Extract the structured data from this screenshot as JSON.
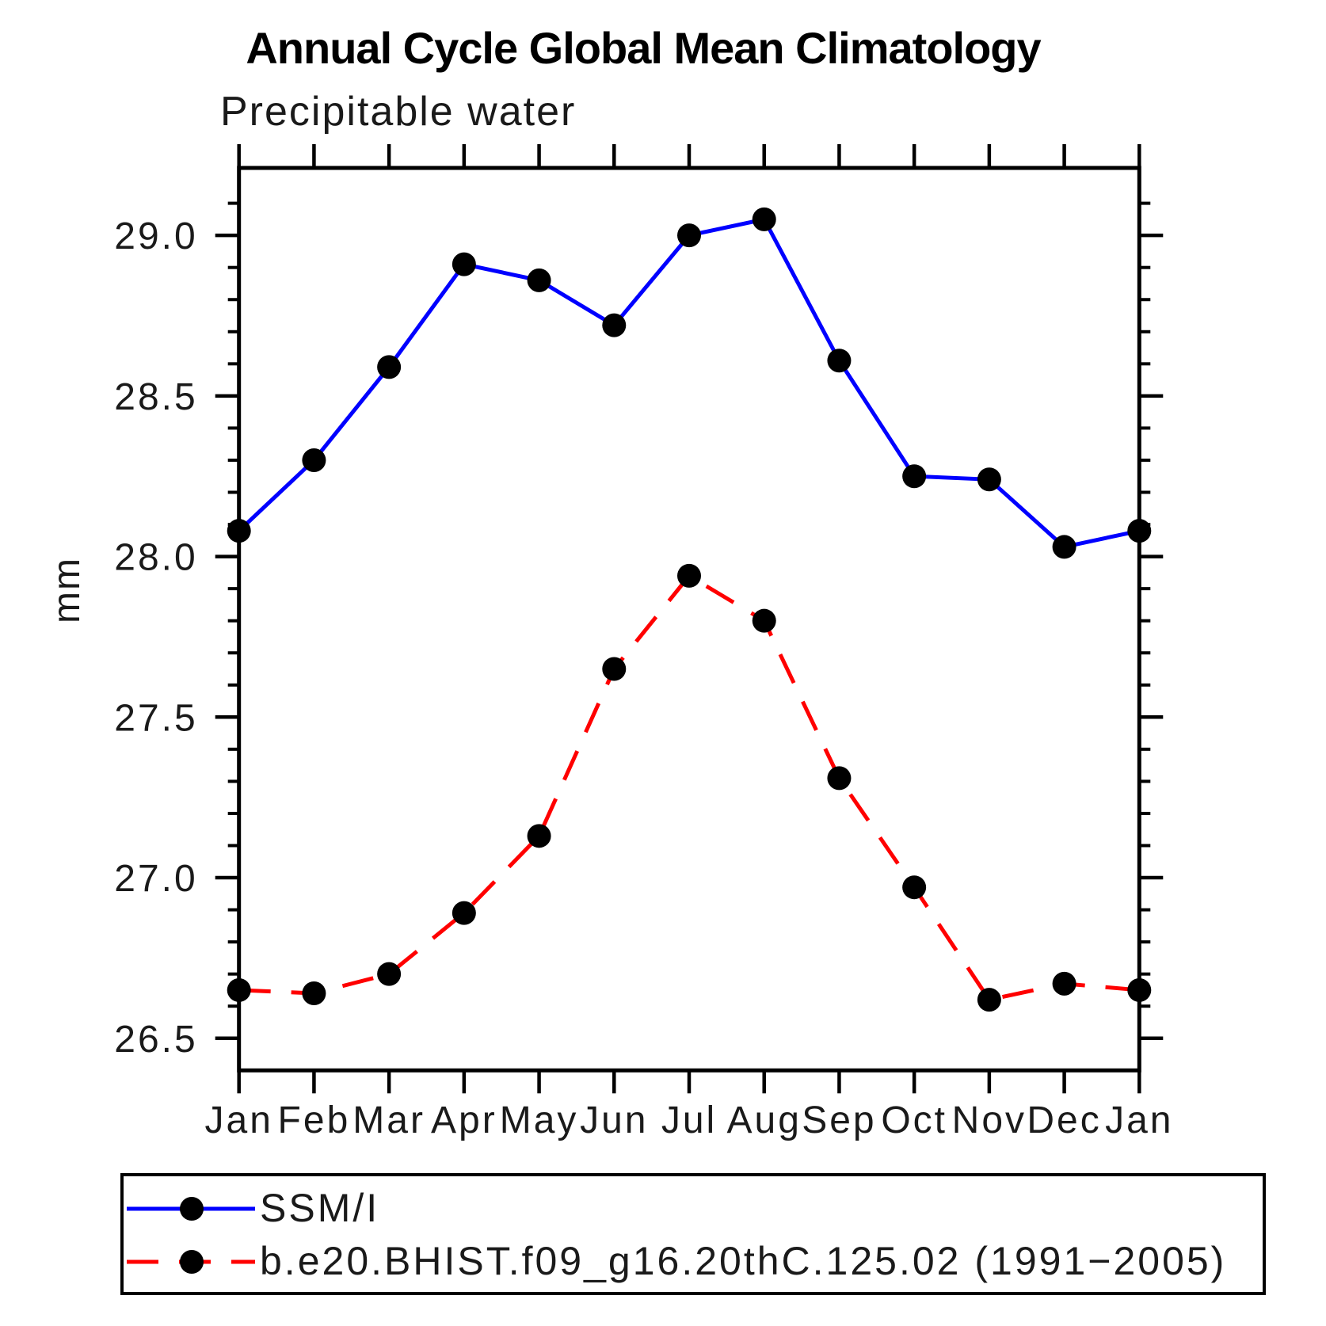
{
  "title": "Annual Cycle Global Mean Climatology",
  "subtitle": "Precipitable water",
  "y_axis_label": "mm",
  "chart_data": {
    "type": "line",
    "title": "Annual Cycle Global Mean Climatology",
    "subtitle": "Precipitable water",
    "xlabel": "",
    "ylabel": "mm",
    "categories": [
      "Jan",
      "Feb",
      "Mar",
      "Apr",
      "May",
      "Jun",
      "Jul",
      "Aug",
      "Sep",
      "Oct",
      "Nov",
      "Dec",
      "Jan"
    ],
    "ylim": [
      26.4,
      29.21
    ],
    "y_ticks_major": [
      26.5,
      27.0,
      27.5,
      28.0,
      28.5,
      29.0
    ],
    "y_tick_labels": [
      "26.5",
      "27.0",
      "27.5",
      "28.0",
      "28.5",
      "29.0"
    ],
    "y_minor_tick_step": 0.1,
    "grid": false,
    "legend_position": "bottom",
    "frame_color": "#000000",
    "marker_shape": "circle",
    "series": [
      {
        "name": "SSM/I",
        "color": "#0000ff",
        "line_style": "solid",
        "marker_color": "#000000",
        "values": [
          28.08,
          28.3,
          28.59,
          28.91,
          28.86,
          28.72,
          29.0,
          29.05,
          28.61,
          28.25,
          28.24,
          28.03,
          28.08
        ]
      },
      {
        "name": "b.e20.BHIST.f09_g16.20thC.125.02 (1991−2005)",
        "color": "#ff0000",
        "line_style": "dashed",
        "marker_color": "#000000",
        "values": [
          26.65,
          26.64,
          26.7,
          26.89,
          27.13,
          27.65,
          27.94,
          27.8,
          27.31,
          26.97,
          26.62,
          26.67,
          26.65
        ]
      }
    ]
  }
}
